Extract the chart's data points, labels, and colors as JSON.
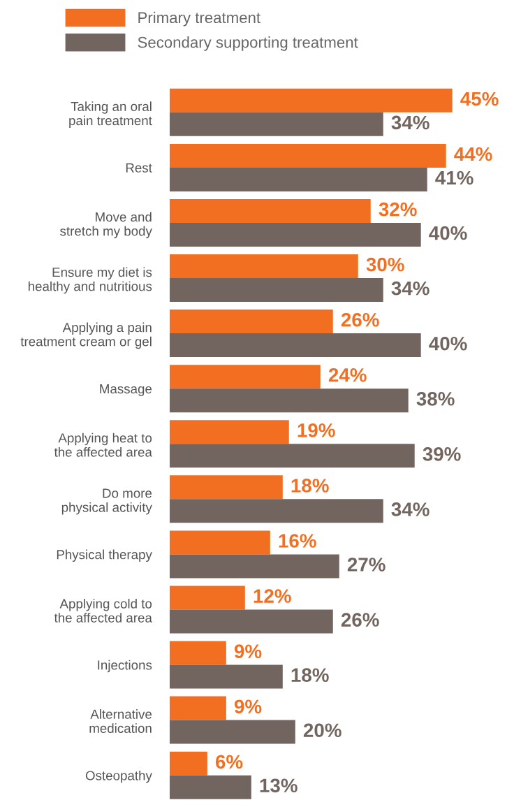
{
  "chart_data": {
    "type": "bar",
    "orientation": "horizontal",
    "legend": "top left",
    "grid": false,
    "categories": [
      "Taking an oral\npain treatment",
      "Rest",
      "Move and\nstretch my body",
      "Ensure my diet is\nhealthy and nutritious",
      "Applying a pain\ntreatment cream or gel",
      "Massage",
      "Applying heat to\nthe affected area",
      "Do more\nphysical activity",
      "Physical therapy",
      "Applying cold to\nthe affected area",
      "Injections",
      "Alternative\nmedication",
      "Osteopathy"
    ],
    "series": [
      {
        "name": "Primary treatment",
        "color": "#f26f21",
        "values": [
          45,
          44,
          32,
          30,
          26,
          24,
          19,
          18,
          16,
          12,
          9,
          9,
          6
        ],
        "value_labels": [
          "45%",
          "44%",
          "32%",
          "30%",
          "26%",
          "24%",
          "19%",
          "18%",
          "16%",
          "12%",
          "9%",
          "9%",
          "6%"
        ]
      },
      {
        "name": "Secondary supporting treatment",
        "color": "#726560",
        "values": [
          34,
          41,
          40,
          34,
          40,
          38,
          39,
          34,
          27,
          26,
          18,
          20,
          13
        ],
        "value_labels": [
          "34%",
          "41%",
          "40%",
          "34%",
          "40%",
          "38%",
          "39%",
          "34%",
          "27%",
          "26%",
          "18%",
          "20%",
          "13%"
        ]
      }
    ]
  }
}
